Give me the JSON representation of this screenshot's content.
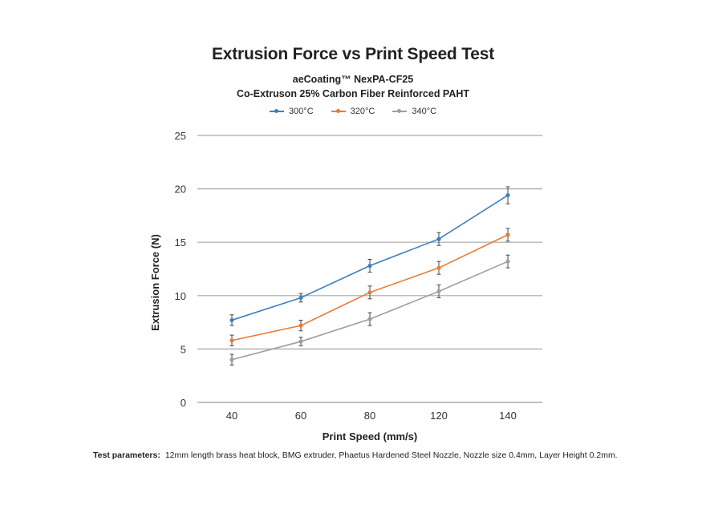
{
  "chart_data": {
    "type": "line",
    "title": "Extrusion Force vs Print Speed Test",
    "subtitle_lines": [
      "aeCoating™ NexPA-CF25",
      "Co-Extruson 25% Carbon Fiber Reinforced PAHT"
    ],
    "xlabel": "Print Speed (mm/s)",
    "ylabel": "Extrusion Force (N)",
    "categories": [
      "40",
      "60",
      "80",
      "120",
      "140"
    ],
    "ylim": [
      0,
      25
    ],
    "yticks": [
      "0",
      "5",
      "10",
      "15",
      "20",
      "25"
    ],
    "grid": true,
    "legend_position": "top-center",
    "series": [
      {
        "name": "300°C",
        "color": "#3d7fc1",
        "values": [
          7.7,
          9.8,
          12.8,
          15.3,
          19.4
        ],
        "errors": [
          0.5,
          0.4,
          0.6,
          0.6,
          0.8
        ]
      },
      {
        "name": "320°C",
        "color": "#ec7a30",
        "values": [
          5.8,
          7.2,
          10.3,
          12.6,
          15.7
        ],
        "errors": [
          0.5,
          0.5,
          0.6,
          0.6,
          0.6
        ]
      },
      {
        "name": "340°C",
        "color": "#9e9e9e",
        "values": [
          4.0,
          5.7,
          7.8,
          10.4,
          13.2
        ],
        "errors": [
          0.5,
          0.4,
          0.6,
          0.6,
          0.6
        ]
      }
    ]
  },
  "footnote": {
    "label": "Test parameters:",
    "text": "12mm length brass heat block, BMG extruder, Phaetus Hardened Steel Nozzle, Nozzle size 0.4mm, Layer Height 0.2mm."
  }
}
